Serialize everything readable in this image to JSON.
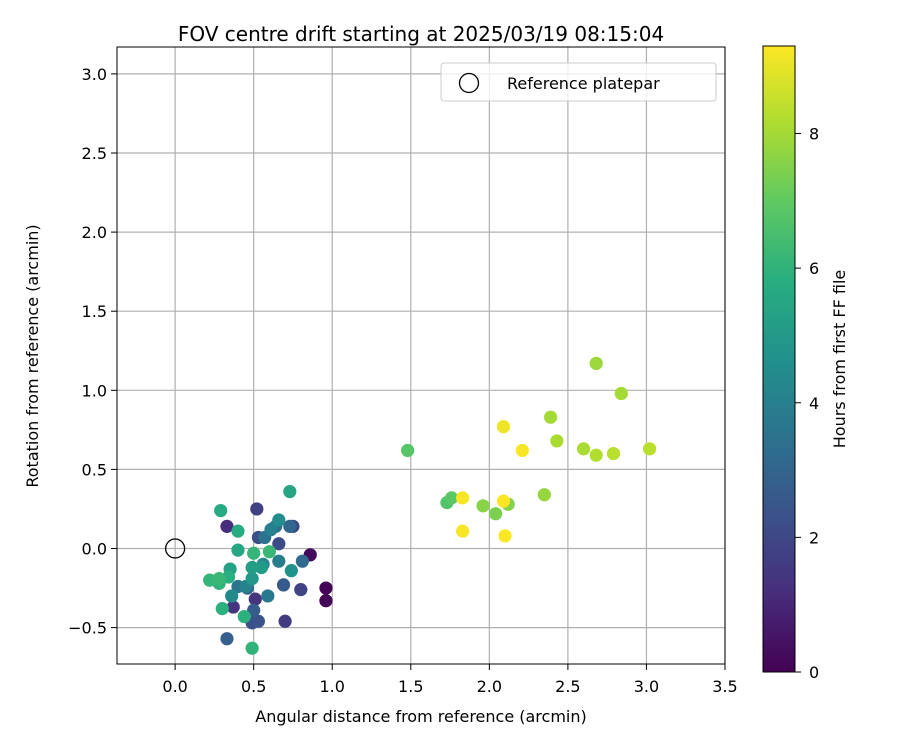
{
  "chart_data": {
    "type": "scatter",
    "title": "FOV centre drift starting at 2025/03/19 08:15:04",
    "xlabel": "Angular distance from reference (arcmin)",
    "ylabel": "Rotation from reference (arcmin)",
    "xlim": [
      -0.37,
      3.5
    ],
    "ylim": [
      -0.73,
      3.17
    ],
    "xticks": [
      "0.0",
      "0.5",
      "1.0",
      "1.5",
      "2.0",
      "2.5",
      "3.0",
      "3.5"
    ],
    "yticks": [
      "−0.5",
      "0.0",
      "0.5",
      "1.0",
      "1.5",
      "2.0",
      "2.5",
      "3.0"
    ],
    "grid": true,
    "legend": {
      "position": "top-right",
      "entry": "Reference platepar"
    },
    "reference_point": {
      "x": 0.0,
      "y": 0.0
    },
    "colorbar": {
      "label": "Hours from first FF file",
      "colormap": "viridis",
      "range": [
        0,
        9.3
      ],
      "ticks": [
        "0",
        "2",
        "4",
        "6",
        "8"
      ]
    },
    "points": [
      {
        "x": 0.96,
        "y": -0.25,
        "h": 0.1
      },
      {
        "x": 0.96,
        "y": -0.33,
        "h": 0.1
      },
      {
        "x": 0.86,
        "y": -0.04,
        "h": 0.2
      },
      {
        "x": 0.33,
        "y": 0.14,
        "h": 1.2
      },
      {
        "x": 0.37,
        "y": -0.37,
        "h": 1.4
      },
      {
        "x": 0.51,
        "y": -0.32,
        "h": 1.4
      },
      {
        "x": 0.7,
        "y": -0.46,
        "h": 1.6
      },
      {
        "x": 0.52,
        "y": 0.25,
        "h": 1.8
      },
      {
        "x": 0.8,
        "y": -0.26,
        "h": 1.9
      },
      {
        "x": 0.75,
        "y": 0.14,
        "h": 2.0
      },
      {
        "x": 0.66,
        "y": 0.03,
        "h": 2.1
      },
      {
        "x": 0.53,
        "y": 0.07,
        "h": 2.2
      },
      {
        "x": 0.49,
        "y": -0.47,
        "h": 2.3
      },
      {
        "x": 0.53,
        "y": -0.46,
        "h": 2.4
      },
      {
        "x": 0.69,
        "y": -0.23,
        "h": 2.6
      },
      {
        "x": 0.5,
        "y": -0.39,
        "h": 2.7
      },
      {
        "x": 0.33,
        "y": -0.57,
        "h": 2.8
      },
      {
        "x": 0.46,
        "y": -0.25,
        "h": 3.0
      },
      {
        "x": 0.73,
        "y": 0.14,
        "h": 3.1
      },
      {
        "x": 0.81,
        "y": -0.08,
        "h": 3.2
      },
      {
        "x": 0.64,
        "y": 0.14,
        "h": 3.3
      },
      {
        "x": 0.57,
        "y": 0.07,
        "h": 3.5
      },
      {
        "x": 0.4,
        "y": -0.24,
        "h": 3.6
      },
      {
        "x": 0.59,
        "y": -0.3,
        "h": 3.7
      },
      {
        "x": 0.66,
        "y": -0.08,
        "h": 3.9
      },
      {
        "x": 0.61,
        "y": 0.12,
        "h": 4.0
      },
      {
        "x": 0.45,
        "y": -0.24,
        "h": 4.1
      },
      {
        "x": 0.56,
        "y": -0.1,
        "h": 4.3
      },
      {
        "x": 0.36,
        "y": -0.3,
        "h": 4.4
      },
      {
        "x": 0.66,
        "y": 0.18,
        "h": 4.5
      },
      {
        "x": 0.74,
        "y": -0.14,
        "h": 4.7
      },
      {
        "x": 0.49,
        "y": -0.19,
        "h": 4.9
      },
      {
        "x": 0.55,
        "y": -0.12,
        "h": 5.0
      },
      {
        "x": 0.49,
        "y": -0.12,
        "h": 5.2
      },
      {
        "x": 0.35,
        "y": -0.13,
        "h": 5.3
      },
      {
        "x": 0.73,
        "y": 0.36,
        "h": 5.4
      },
      {
        "x": 0.4,
        "y": -0.01,
        "h": 5.5
      },
      {
        "x": 0.29,
        "y": 0.24,
        "h": 5.6
      },
      {
        "x": 0.4,
        "y": 0.11,
        "h": 5.7
      },
      {
        "x": 0.34,
        "y": -0.18,
        "h": 5.8
      },
      {
        "x": 0.44,
        "y": -0.43,
        "h": 5.9
      },
      {
        "x": 0.3,
        "y": -0.38,
        "h": 5.9
      },
      {
        "x": 0.49,
        "y": -0.63,
        "h": 6.0
      },
      {
        "x": 0.28,
        "y": -0.22,
        "h": 6.0
      },
      {
        "x": 0.22,
        "y": -0.2,
        "h": 6.1
      },
      {
        "x": 0.5,
        "y": -0.03,
        "h": 6.1
      },
      {
        "x": 0.6,
        "y": -0.02,
        "h": 6.2
      },
      {
        "x": 0.28,
        "y": -0.19,
        "h": 6.2
      },
      {
        "x": 1.48,
        "y": 0.62,
        "h": 6.8
      },
      {
        "x": 1.73,
        "y": 0.29,
        "h": 6.7
      },
      {
        "x": 1.76,
        "y": 0.32,
        "h": 6.9
      },
      {
        "x": 2.04,
        "y": 0.22,
        "h": 7.4
      },
      {
        "x": 1.96,
        "y": 0.27,
        "h": 7.6
      },
      {
        "x": 2.12,
        "y": 0.28,
        "h": 7.5
      },
      {
        "x": 2.35,
        "y": 0.34,
        "h": 7.8
      },
      {
        "x": 2.68,
        "y": 1.17,
        "h": 7.9
      },
      {
        "x": 2.84,
        "y": 0.98,
        "h": 8.0
      },
      {
        "x": 2.39,
        "y": 0.83,
        "h": 8.0
      },
      {
        "x": 2.43,
        "y": 0.68,
        "h": 8.1
      },
      {
        "x": 2.6,
        "y": 0.63,
        "h": 8.1
      },
      {
        "x": 2.68,
        "y": 0.59,
        "h": 8.2
      },
      {
        "x": 2.79,
        "y": 0.6,
        "h": 8.3
      },
      {
        "x": 3.02,
        "y": 0.63,
        "h": 8.3
      },
      {
        "x": 2.09,
        "y": 0.77,
        "h": 9.1
      },
      {
        "x": 2.21,
        "y": 0.62,
        "h": 9.2
      },
      {
        "x": 1.83,
        "y": 0.32,
        "h": 9.2
      },
      {
        "x": 2.09,
        "y": 0.3,
        "h": 9.3
      },
      {
        "x": 1.83,
        "y": 0.11,
        "h": 9.2
      },
      {
        "x": 2.1,
        "y": 0.08,
        "h": 9.3
      }
    ]
  }
}
